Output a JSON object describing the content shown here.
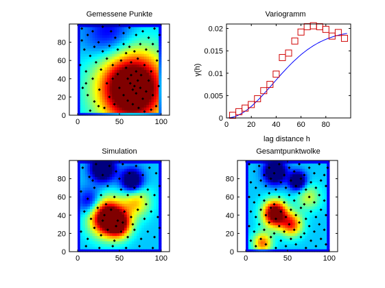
{
  "figure": {
    "panels": [
      {
        "id": "p1",
        "title": "Gemessene Punkte"
      },
      {
        "id": "p2",
        "title": "Variogramm",
        "xlabel": "lag distance h",
        "ylabel": "γ(h)"
      },
      {
        "id": "p3",
        "title": "Simulation"
      },
      {
        "id": "p4",
        "title": "Gesamtpunktwolke"
      }
    ]
  },
  "colors": {
    "background": "#ffffff",
    "axis": "#000000",
    "marker_square": "#d00000",
    "model_line": "#0000ff",
    "point_marker": "#000000",
    "field_edge": "#00008f"
  },
  "chart_data": [
    {
      "type": "heatmap",
      "panel": "p1",
      "title": "Gemessene Punkte",
      "colormap": "jet",
      "xlim": [
        -10,
        110
      ],
      "ylim": [
        0,
        100
      ],
      "xticks": [
        0,
        50,
        100
      ],
      "yticks": [
        0,
        20,
        40,
        60,
        80
      ],
      "field_extent": [
        0,
        100,
        0,
        100
      ],
      "field_peaks": [
        {
          "x": 65,
          "y": 30,
          "value": 1.0,
          "sigma": 28
        },
        {
          "x": 38,
          "y": 88,
          "value": -0.25,
          "sigma": 20
        }
      ],
      "points": [
        [
          5,
          95
        ],
        [
          12,
          88
        ],
        [
          18,
          92
        ],
        [
          25,
          80
        ],
        [
          8,
          72
        ],
        [
          15,
          65
        ],
        [
          30,
          97
        ],
        [
          40,
          92
        ],
        [
          45,
          85
        ],
        [
          55,
          90
        ],
        [
          62,
          96
        ],
        [
          70,
          88
        ],
        [
          78,
          92
        ],
        [
          85,
          85
        ],
        [
          92,
          95
        ],
        [
          98,
          88
        ],
        [
          3,
          55
        ],
        [
          10,
          48
        ],
        [
          18,
          40
        ],
        [
          22,
          58
        ],
        [
          28,
          50
        ],
        [
          35,
          62
        ],
        [
          42,
          55
        ],
        [
          48,
          45
        ],
        [
          52,
          60
        ],
        [
          58,
          52
        ],
        [
          64,
          58
        ],
        [
          72,
          62
        ],
        [
          80,
          55
        ],
        [
          88,
          48
        ],
        [
          95,
          60
        ],
        [
          6,
          30
        ],
        [
          12,
          22
        ],
        [
          20,
          15
        ],
        [
          26,
          28
        ],
        [
          32,
          8
        ],
        [
          38,
          20
        ],
        [
          44,
          12
        ],
        [
          50,
          30
        ],
        [
          55,
          22
        ],
        [
          60,
          40
        ],
        [
          63,
          35
        ],
        [
          66,
          28
        ],
        [
          68,
          32
        ],
        [
          70,
          24
        ],
        [
          72,
          38
        ],
        [
          75,
          30
        ],
        [
          78,
          18
        ],
        [
          82,
          26
        ],
        [
          85,
          38
        ],
        [
          90,
          22
        ],
        [
          94,
          10
        ],
        [
          97,
          32
        ],
        [
          60,
          16
        ],
        [
          66,
          12
        ],
        [
          73,
          8
        ],
        [
          80,
          4
        ],
        [
          88,
          6
        ],
        [
          15,
          5
        ],
        [
          25,
          10
        ],
        [
          35,
          35
        ],
        [
          42,
          40
        ],
        [
          48,
          72
        ],
        [
          55,
          78
        ],
        [
          62,
          75
        ],
        [
          68,
          70
        ],
        [
          75,
          78
        ],
        [
          82,
          72
        ],
        [
          90,
          78
        ],
        [
          96,
          70
        ],
        [
          5,
          82
        ],
        [
          20,
          75
        ],
        [
          30,
          70
        ],
        [
          38,
          76
        ],
        [
          10,
          35
        ],
        [
          58,
          68
        ],
        [
          64,
          44
        ],
        [
          70,
          48
        ],
        [
          76,
          44
        ]
      ]
    },
    {
      "type": "scatter",
      "panel": "p2",
      "title": "Variogramm",
      "xlabel": "lag distance h",
      "ylabel": "γ(h)",
      "xlim": [
        0,
        100
      ],
      "ylim": [
        0,
        0.021
      ],
      "xticks": [
        0,
        20,
        40,
        60,
        80
      ],
      "yticks": [
        0,
        0.005,
        0.01,
        0.015,
        0.02
      ],
      "ytick_labels": [
        "0",
        "0.005",
        "0.01",
        "0.015",
        "0.02"
      ],
      "series": [
        {
          "marker": "square",
          "x": [
            5,
            10,
            15,
            20,
            25,
            30,
            35,
            40,
            45,
            50,
            55,
            60,
            65,
            70,
            75,
            80,
            85,
            90,
            95
          ],
          "y": [
            0.0006,
            0.0014,
            0.0022,
            0.003,
            0.0043,
            0.0061,
            0.0075,
            0.0098,
            0.0135,
            0.0145,
            0.0172,
            0.0192,
            0.0204,
            0.0206,
            0.0204,
            0.0198,
            0.0183,
            0.0191,
            0.0178
          ]
        },
        {
          "marker": "line",
          "model": "gaussian",
          "sill": 0.0196,
          "range": 92
        }
      ]
    },
    {
      "type": "heatmap",
      "panel": "p3",
      "title": "Simulation",
      "colormap": "jet",
      "xlim": [
        -10,
        110
      ],
      "ylim": [
        0,
        100
      ],
      "xticks": [
        0,
        50,
        100
      ],
      "yticks": [
        0,
        20,
        40,
        60,
        80
      ],
      "field_extent": [
        0,
        100,
        0,
        100
      ],
      "field_peaks": [
        {
          "x": 35,
          "y": 38,
          "value": 0.9,
          "sigma": 14
        },
        {
          "x": 50,
          "y": 30,
          "value": 0.55,
          "sigma": 10
        },
        {
          "x": 70,
          "y": 55,
          "value": 0.35,
          "sigma": 12
        },
        {
          "x": 30,
          "y": 92,
          "value": -0.6,
          "sigma": 10
        },
        {
          "x": 65,
          "y": 78,
          "value": -0.55,
          "sigma": 9
        },
        {
          "x": 15,
          "y": 55,
          "value": -0.3,
          "sigma": 10
        }
      ],
      "points": [
        [
          6,
          92
        ],
        [
          14,
          82
        ],
        [
          22,
          96
        ],
        [
          30,
          84
        ],
        [
          38,
          94
        ],
        [
          46,
          88
        ],
        [
          54,
          96
        ],
        [
          62,
          86
        ],
        [
          70,
          94
        ],
        [
          78,
          84
        ],
        [
          86,
          92
        ],
        [
          94,
          86
        ],
        [
          4,
          66
        ],
        [
          12,
          58
        ],
        [
          20,
          70
        ],
        [
          28,
          62
        ],
        [
          36,
          72
        ],
        [
          44,
          60
        ],
        [
          52,
          68
        ],
        [
          60,
          62
        ],
        [
          68,
          70
        ],
        [
          76,
          60
        ],
        [
          84,
          68
        ],
        [
          92,
          62
        ],
        [
          98,
          72
        ],
        [
          8,
          44
        ],
        [
          16,
          36
        ],
        [
          24,
          48
        ],
        [
          32,
          40
        ],
        [
          40,
          46
        ],
        [
          48,
          34
        ],
        [
          56,
          44
        ],
        [
          64,
          38
        ],
        [
          72,
          46
        ],
        [
          80,
          36
        ],
        [
          88,
          44
        ],
        [
          96,
          38
        ],
        [
          4,
          22
        ],
        [
          12,
          14
        ],
        [
          20,
          26
        ],
        [
          28,
          18
        ],
        [
          36,
          24
        ],
        [
          44,
          12
        ],
        [
          52,
          22
        ],
        [
          60,
          16
        ],
        [
          68,
          24
        ],
        [
          76,
          14
        ],
        [
          84,
          22
        ],
        [
          92,
          16
        ],
        [
          98,
          26
        ],
        [
          10,
          6
        ],
        [
          26,
          4
        ],
        [
          42,
          6
        ],
        [
          58,
          4
        ],
        [
          74,
          6
        ],
        [
          90,
          4
        ],
        [
          18,
          78
        ],
        [
          34,
          52
        ],
        [
          50,
          80
        ],
        [
          66,
          30
        ],
        [
          82,
          52
        ],
        [
          46,
          28
        ],
        [
          54,
          32
        ],
        [
          30,
          34
        ]
      ]
    },
    {
      "type": "heatmap",
      "panel": "p4",
      "title": "Gesamtpunktwolke",
      "colormap": "jet",
      "xlim": [
        -10,
        110
      ],
      "ylim": [
        0,
        100
      ],
      "xticks": [
        0,
        50,
        100
      ],
      "yticks": [
        0,
        20,
        40,
        60,
        80
      ],
      "field_extent": [
        0,
        100,
        0,
        100
      ],
      "field_peaks": [
        {
          "x": 35,
          "y": 42,
          "value": 0.85,
          "sigma": 10
        },
        {
          "x": 55,
          "y": 30,
          "value": 0.5,
          "sigma": 9
        },
        {
          "x": 20,
          "y": 10,
          "value": 0.45,
          "sigma": 8
        },
        {
          "x": 35,
          "y": 88,
          "value": -0.6,
          "sigma": 9
        },
        {
          "x": 62,
          "y": 78,
          "value": -0.55,
          "sigma": 7
        },
        {
          "x": 75,
          "y": 60,
          "value": 0.25,
          "sigma": 10
        }
      ],
      "points": [
        [
          4,
          96
        ],
        [
          10,
          88
        ],
        [
          16,
          94
        ],
        [
          22,
          84
        ],
        [
          28,
          92
        ],
        [
          34,
          86
        ],
        [
          40,
          96
        ],
        [
          46,
          84
        ],
        [
          52,
          92
        ],
        [
          58,
          88
        ],
        [
          64,
          96
        ],
        [
          70,
          84
        ],
        [
          76,
          92
        ],
        [
          82,
          86
        ],
        [
          88,
          96
        ],
        [
          94,
          84
        ],
        [
          98,
          92
        ],
        [
          6,
          76
        ],
        [
          12,
          70
        ],
        [
          18,
          78
        ],
        [
          24,
          72
        ],
        [
          30,
          80
        ],
        [
          36,
          68
        ],
        [
          42,
          76
        ],
        [
          48,
          70
        ],
        [
          54,
          78
        ],
        [
          60,
          72
        ],
        [
          66,
          80
        ],
        [
          72,
          68
        ],
        [
          78,
          76
        ],
        [
          84,
          70
        ],
        [
          90,
          78
        ],
        [
          96,
          72
        ],
        [
          4,
          60
        ],
        [
          10,
          54
        ],
        [
          16,
          62
        ],
        [
          22,
          56
        ],
        [
          28,
          64
        ],
        [
          34,
          52
        ],
        [
          40,
          60
        ],
        [
          46,
          54
        ],
        [
          52,
          62
        ],
        [
          58,
          56
        ],
        [
          64,
          64
        ],
        [
          70,
          52
        ],
        [
          76,
          60
        ],
        [
          82,
          54
        ],
        [
          88,
          62
        ],
        [
          94,
          56
        ],
        [
          6,
          44
        ],
        [
          12,
          38
        ],
        [
          18,
          46
        ],
        [
          24,
          40
        ],
        [
          30,
          48
        ],
        [
          36,
          36
        ],
        [
          42,
          44
        ],
        [
          48,
          38
        ],
        [
          54,
          46
        ],
        [
          60,
          40
        ],
        [
          66,
          48
        ],
        [
          72,
          36
        ],
        [
          78,
          44
        ],
        [
          84,
          38
        ],
        [
          90,
          46
        ],
        [
          96,
          40
        ],
        [
          4,
          28
        ],
        [
          10,
          22
        ],
        [
          16,
          30
        ],
        [
          22,
          24
        ],
        [
          28,
          32
        ],
        [
          34,
          20
        ],
        [
          40,
          28
        ],
        [
          46,
          22
        ],
        [
          52,
          30
        ],
        [
          58,
          24
        ],
        [
          64,
          32
        ],
        [
          70,
          20
        ],
        [
          76,
          28
        ],
        [
          82,
          22
        ],
        [
          88,
          30
        ],
        [
          94,
          24
        ],
        [
          6,
          12
        ],
        [
          12,
          6
        ],
        [
          18,
          14
        ],
        [
          24,
          8
        ],
        [
          30,
          16
        ],
        [
          36,
          4
        ],
        [
          42,
          12
        ],
        [
          48,
          6
        ],
        [
          54,
          14
        ],
        [
          60,
          8
        ],
        [
          66,
          16
        ],
        [
          72,
          4
        ],
        [
          78,
          12
        ],
        [
          84,
          6
        ],
        [
          90,
          14
        ],
        [
          96,
          8
        ]
      ]
    }
  ]
}
